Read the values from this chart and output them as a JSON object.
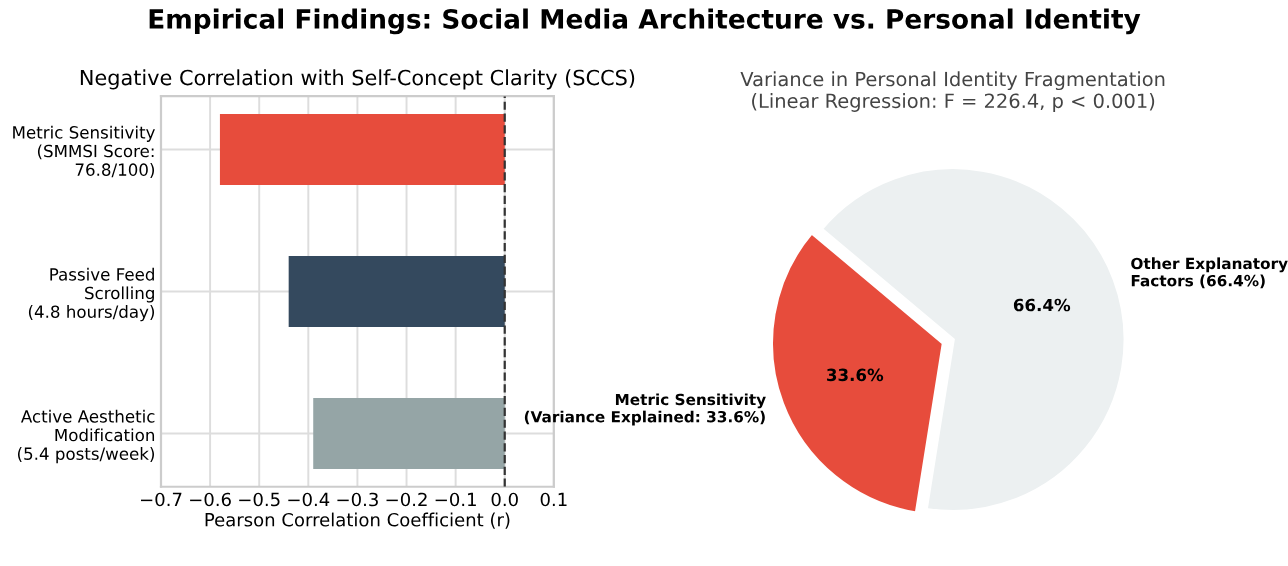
{
  "chart_data": [
    {
      "type": "bar",
      "title": "Negative Correlation with Self-Concept Clarity (SCCS)",
      "orientation": "horizontal",
      "xlabel": "Pearson Correlation Coefficient (r)",
      "categories": [
        "Metric Sensitivity\n(SMMSI Score:\n76.8/100)",
        "Passive Feed\nScrolling\n(4.8 hours/day)",
        "Active Aesthetic\nModification\n(5.4 posts/week)"
      ],
      "values": [
        -0.58,
        -0.44,
        -0.39
      ],
      "colors": [
        "#e74c3c",
        "#34495e",
        "#95a5a6"
      ],
      "annotations": [
        "Empirical Findings: Social Media Architecture vs. Personal Identity"
      ],
      "xlim": [
        -0.7,
        0.1
      ],
      "xticks": [
        {
          "value": -0.7,
          "label": "−0.7"
        },
        {
          "value": -0.6,
          "label": "−0.6"
        },
        {
          "value": -0.5,
          "label": "−0.5"
        },
        {
          "value": -0.4,
          "label": "−0.4"
        },
        {
          "value": -0.3,
          "label": "−0.3"
        },
        {
          "value": -0.2,
          "label": "−0.2"
        },
        {
          "value": -0.1,
          "label": "−0.1"
        },
        {
          "value": 0,
          "label": "0.0"
        },
        0.1
      ],
      "ref_lines": [
        {
          "axis": "x",
          "value": 0,
          "color": "#333333",
          "line_style": "dashed"
        }
      ],
      "grid": true
    },
    {
      "type": "pie",
      "title": "Variance in Personal Identity Fragmentation\n(Linear Regression: F = 226.4, p < 0.001)",
      "categories": [
        "Metric Sensitivity\n(Variance Explained: 33.6%)",
        "Other Explanatory\nFactors (66.4%)"
      ],
      "values": [
        33.6,
        66.4
      ],
      "colors": [
        "#e74c3c",
        "#ecf0f1"
      ],
      "value_labels": [
        "33.6%",
        "66.4%"
      ]
    }
  ]
}
